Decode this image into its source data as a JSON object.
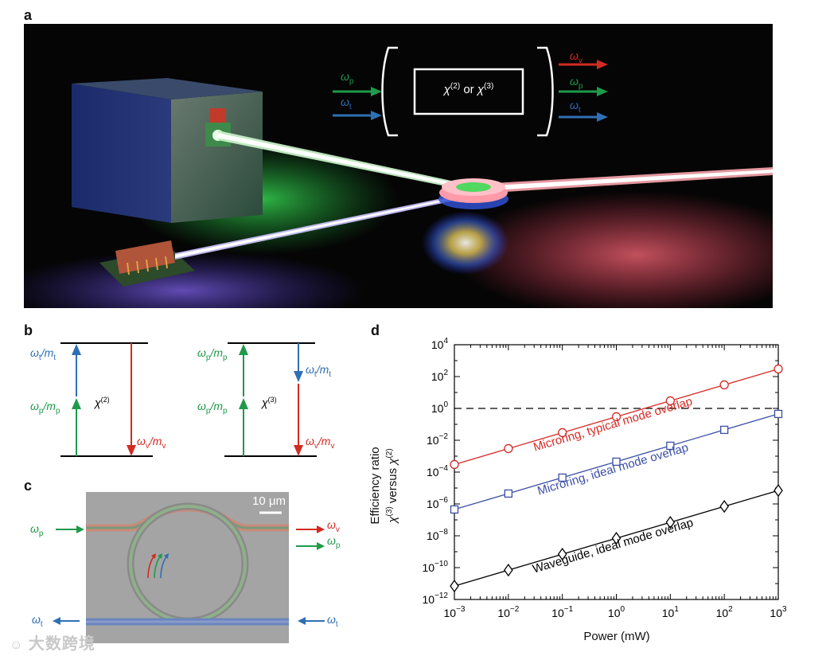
{
  "panels": {
    "a": "a",
    "b": "b",
    "c": "c",
    "d": "d"
  },
  "colors": {
    "pump_green": "#1f9a4a",
    "target_blue": "#2f6fb3",
    "idler_red": "#d22b22",
    "series_red": "#d62a25",
    "series_blue": "#3a4ea5",
    "series_black": "#000000"
  },
  "panel_a": {
    "input_labels": {
      "pump": "ω",
      "pump_sub": "p",
      "target": "ω",
      "target_sub": "t"
    },
    "crystal": {
      "chi": "χ",
      "order2": "(2)",
      "or": " or ",
      "order3": "(3)"
    },
    "output_labels": {
      "idler": "ω",
      "idler_sub": "v",
      "pump": "ω",
      "pump_sub": "p",
      "target": "ω",
      "target_sub": "t"
    }
  },
  "panel_b": {
    "left": {
      "top_label": {
        "w": "ω",
        "ws": "t",
        "m": "m",
        "ms": "t"
      },
      "mid_label": {
        "w": "ω",
        "ws": "p",
        "m": "m",
        "ms": "p"
      },
      "chi": "χ",
      "chi_order": "(2)",
      "right_label": {
        "w": "ω",
        "ws": "v",
        "m": "m",
        "ms": "v"
      }
    },
    "right": {
      "top_label": {
        "w": "ω",
        "ws": "p",
        "m": "m",
        "ms": "p"
      },
      "mid_label": {
        "w": "ω",
        "ws": "p",
        "m": "m",
        "ms": "p"
      },
      "chi": "χ",
      "chi_order": "(3)",
      "t_label": {
        "w": "ω",
        "ws": "t",
        "m": "m",
        "ms": "t"
      },
      "v_label": {
        "w": "ω",
        "ws": "v",
        "m": "m",
        "ms": "v"
      }
    }
  },
  "panel_c": {
    "scale_bar": "10 μm",
    "labels": {
      "pump_in": {
        "w": "ω",
        "s": "p"
      },
      "idler_out": {
        "w": "ω",
        "s": "v"
      },
      "pump_out": {
        "w": "ω",
        "s": "p"
      },
      "target_out": {
        "w": "ω",
        "s": "t"
      },
      "target_in": {
        "w": "ω",
        "s": "t"
      }
    }
  },
  "watermark": "大数跨境",
  "chart_data": {
    "type": "line",
    "xlabel": "Power (mW)",
    "ylabel_line1": "Efficiency ratio",
    "ylabel_line2": {
      "chi": "χ",
      "o3": "(3)",
      "versus": " versus ",
      "o2": "(2)"
    },
    "x_scale": "log",
    "y_scale": "log",
    "xlim_exp": [
      -3,
      3
    ],
    "ylim_exp": [
      -12,
      4
    ],
    "x_ticks": [
      -3,
      -2,
      -1,
      0,
      1,
      2,
      3
    ],
    "y_ticks": [
      4,
      2,
      0,
      -2,
      -4,
      -6,
      -8,
      -10,
      -12
    ],
    "x": [
      0.001,
      0.01,
      0.1,
      1,
      10,
      100,
      1000
    ],
    "reference_line": {
      "y": 1,
      "style": "dashed"
    },
    "series": [
      {
        "name": "Microring, typical mode overlap",
        "color": "#d62a25",
        "marker": "circle",
        "values": [
          0.0003,
          0.003,
          0.03,
          0.3,
          3,
          30,
          300
        ]
      },
      {
        "name": "Microring, ideal mode overlap",
        "color": "#3a4ea5",
        "marker": "square",
        "values": [
          4.5e-07,
          4.5e-06,
          4.5e-05,
          0.00045,
          0.0045,
          0.045,
          0.45
        ]
      },
      {
        "name": "Waveguide, ideal mode overlap",
        "color": "#000000",
        "marker": "diamond",
        "values": [
          7e-12,
          7e-11,
          7e-10,
          7e-09,
          7e-08,
          7e-07,
          7e-06
        ]
      }
    ]
  }
}
